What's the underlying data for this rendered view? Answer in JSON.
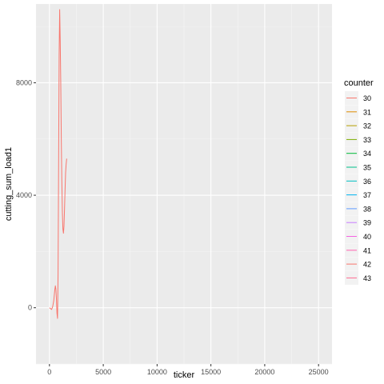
{
  "chart_data": {
    "type": "line",
    "xlabel": "ticker",
    "ylabel": "cutting_sum_load1",
    "xlim": [
      -1250,
      26250
    ],
    "ylim": [
      -2000,
      10800
    ],
    "x_ticks": [
      0,
      5000,
      10000,
      15000,
      20000,
      25000
    ],
    "x_tick_labels": [
      "0",
      "5000",
      "10000",
      "15000",
      "20000",
      "25000"
    ],
    "y_ticks": [
      0,
      4000,
      8000
    ],
    "y_tick_labels": [
      "0",
      "4000",
      "8000"
    ],
    "grid": true,
    "legend": {
      "title": "counter",
      "position": "right",
      "entries": [
        {
          "label": "30",
          "color": "#F8766D"
        },
        {
          "label": "31",
          "color": "#DE8C00"
        },
        {
          "label": "32",
          "color": "#B79F00"
        },
        {
          "label": "33",
          "color": "#7CAE00"
        },
        {
          "label": "34",
          "color": "#00BA38"
        },
        {
          "label": "35",
          "color": "#00C08B"
        },
        {
          "label": "36",
          "color": "#00BFC4"
        },
        {
          "label": "37",
          "color": "#00B4F0"
        },
        {
          "label": "38",
          "color": "#619CFF"
        },
        {
          "label": "39",
          "color": "#C77CFF"
        },
        {
          "label": "40",
          "color": "#F564E3"
        },
        {
          "label": "41",
          "color": "#FF64B0"
        },
        {
          "label": "42",
          "color": "#F8766D"
        },
        {
          "label": "43",
          "color": "#FF6C91"
        }
      ]
    },
    "series": [
      {
        "name": "30",
        "color": "#F8766D",
        "x": [
          0,
          100,
          200,
          300,
          400,
          500,
          550,
          600,
          650,
          700,
          750,
          800,
          850,
          900,
          950,
          1000,
          1050,
          1100,
          1150,
          1200,
          1250,
          1300,
          1350,
          1400,
          1450,
          1500,
          1550,
          1600
        ],
        "y": [
          0,
          -30,
          -60,
          40,
          250,
          650,
          780,
          650,
          300,
          -200,
          -380,
          1200,
          5000,
          9000,
          10600,
          9500,
          8000,
          6000,
          4500,
          3400,
          2800,
          2650,
          2900,
          3500,
          4200,
          4800,
          5100,
          5300
        ]
      }
    ]
  }
}
